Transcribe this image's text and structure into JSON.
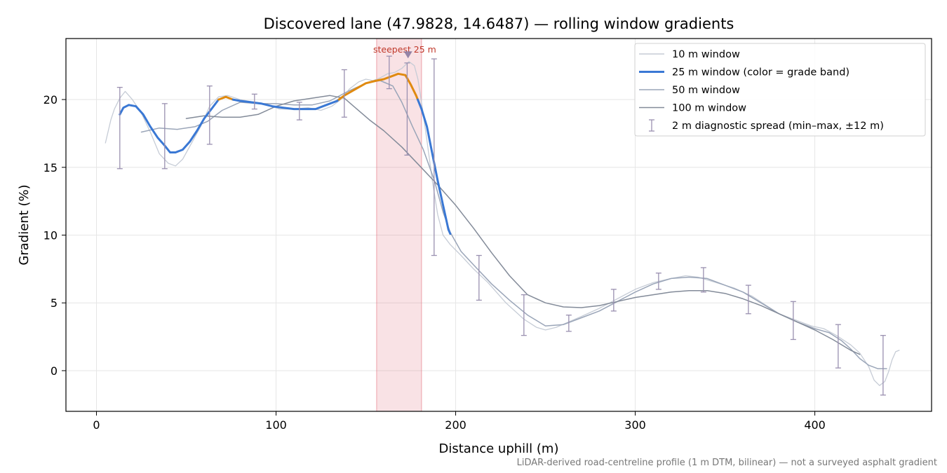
{
  "chart_data": {
    "type": "line",
    "title": "Discovered lane (47.9828, 14.6487) — rolling window gradients",
    "xlabel": "Distance uphill (m)",
    "ylabel": "Gradient (%)",
    "footnote": "LiDAR-derived road-centreline profile (1 m DTM, bilinear) — not a surveyed asphalt gradient",
    "xlim": [
      -17,
      465
    ],
    "ylim": [
      -3,
      24.5
    ],
    "xticks": [
      0,
      100,
      200,
      300,
      400
    ],
    "yticks": [
      0,
      5,
      10,
      15,
      20
    ],
    "grid": true,
    "legend_position": "top-right",
    "highlight": {
      "x_range": [
        156,
        181
      ],
      "label": "steepest 25 m",
      "marker_x": 173.5,
      "marker_y": 23.3,
      "color": "#e06070"
    },
    "series": [
      {
        "name": "10 m window",
        "color": "#c6ccd6",
        "points": [
          [
            5,
            16.8
          ],
          [
            8,
            18.5
          ],
          [
            10,
            19.3
          ],
          [
            13,
            20.1
          ],
          [
            16,
            20.6
          ],
          [
            20,
            20.0
          ],
          [
            25,
            19.0
          ],
          [
            30,
            17.6
          ],
          [
            35,
            16.0
          ],
          [
            40,
            15.3
          ],
          [
            44,
            15.1
          ],
          [
            48,
            15.6
          ],
          [
            53,
            16.8
          ],
          [
            58,
            18.0
          ],
          [
            63,
            19.5
          ],
          [
            68,
            20.2
          ],
          [
            73,
            20.3
          ],
          [
            80,
            20.0
          ],
          [
            88,
            19.8
          ],
          [
            95,
            19.6
          ],
          [
            102,
            19.3
          ],
          [
            110,
            19.3
          ],
          [
            118,
            19.4
          ],
          [
            125,
            19.2
          ],
          [
            131,
            19.5
          ],
          [
            136,
            20.0
          ],
          [
            141,
            20.8
          ],
          [
            146,
            21.3
          ],
          [
            150,
            21.5
          ],
          [
            154,
            21.4
          ],
          [
            158,
            21.6
          ],
          [
            162,
            21.9
          ],
          [
            166,
            22.0
          ],
          [
            170,
            22.3
          ],
          [
            174,
            22.8
          ],
          [
            177,
            22.5
          ],
          [
            179,
            21.5
          ],
          [
            181,
            19.8
          ],
          [
            184,
            17.0
          ],
          [
            187,
            14.0
          ],
          [
            190,
            11.5
          ],
          [
            193,
            10.0
          ],
          [
            197,
            9.3
          ],
          [
            203,
            8.5
          ],
          [
            210,
            7.5
          ],
          [
            218,
            6.5
          ],
          [
            228,
            5.0
          ],
          [
            238,
            3.8
          ],
          [
            245,
            3.2
          ],
          [
            250,
            3.0
          ],
          [
            256,
            3.2
          ],
          [
            263,
            3.6
          ],
          [
            270,
            4.0
          ],
          [
            280,
            4.6
          ],
          [
            290,
            5.3
          ],
          [
            300,
            6.0
          ],
          [
            310,
            6.5
          ],
          [
            320,
            6.8
          ],
          [
            328,
            7.0
          ],
          [
            335,
            6.9
          ],
          [
            345,
            6.5
          ],
          [
            355,
            6.1
          ],
          [
            365,
            5.5
          ],
          [
            373,
            4.8
          ],
          [
            380,
            4.2
          ],
          [
            390,
            3.7
          ],
          [
            398,
            3.3
          ],
          [
            405,
            3.1
          ],
          [
            412,
            2.6
          ],
          [
            420,
            1.9
          ],
          [
            425,
            1.3
          ],
          [
            430,
            0.3
          ],
          [
            433,
            -0.7
          ],
          [
            436,
            -1.1
          ],
          [
            439,
            -0.8
          ],
          [
            441,
            -0.1
          ],
          [
            443,
            0.8
          ],
          [
            445,
            1.4
          ],
          [
            447,
            1.5
          ]
        ]
      },
      {
        "name": "25 m window (color = grade band)",
        "color": "#3a78d4",
        "band_color": "#e08a10",
        "band_threshold": 20,
        "points": [
          [
            13,
            18.9
          ],
          [
            15,
            19.4
          ],
          [
            18,
            19.6
          ],
          [
            22,
            19.5
          ],
          [
            26,
            18.9
          ],
          [
            30,
            18.0
          ],
          [
            34,
            17.2
          ],
          [
            38,
            16.6
          ],
          [
            41,
            16.1
          ],
          [
            44,
            16.1
          ],
          [
            48,
            16.3
          ],
          [
            52,
            16.9
          ],
          [
            56,
            17.7
          ],
          [
            60,
            18.6
          ],
          [
            64,
            19.3
          ],
          [
            68,
            20.0
          ],
          [
            72,
            20.2
          ],
          [
            76,
            20.0
          ],
          [
            80,
            19.9
          ],
          [
            86,
            19.8
          ],
          [
            92,
            19.7
          ],
          [
            98,
            19.5
          ],
          [
            104,
            19.4
          ],
          [
            110,
            19.3
          ],
          [
            116,
            19.3
          ],
          [
            122,
            19.3
          ],
          [
            128,
            19.6
          ],
          [
            134,
            19.9
          ],
          [
            138,
            20.3
          ],
          [
            142,
            20.6
          ],
          [
            146,
            20.9
          ],
          [
            150,
            21.2
          ],
          [
            156,
            21.4
          ],
          [
            160,
            21.5
          ],
          [
            164,
            21.7
          ],
          [
            168,
            21.9
          ],
          [
            172,
            21.8
          ],
          [
            175,
            21.1
          ],
          [
            178,
            20.3
          ],
          [
            181,
            19.3
          ],
          [
            184,
            18.0
          ],
          [
            187,
            16.0
          ],
          [
            190,
            14.0
          ],
          [
            193,
            12.2
          ],
          [
            196,
            10.4
          ],
          [
            197,
            10.1
          ]
        ]
      },
      {
        "name": "50 m window",
        "color": "#9aa5b8",
        "points": [
          [
            25,
            17.6
          ],
          [
            35,
            17.9
          ],
          [
            45,
            17.8
          ],
          [
            55,
            18.0
          ],
          [
            62,
            18.4
          ],
          [
            70,
            19.2
          ],
          [
            80,
            19.8
          ],
          [
            90,
            19.7
          ],
          [
            100,
            19.7
          ],
          [
            110,
            19.6
          ],
          [
            120,
            19.6
          ],
          [
            130,
            19.9
          ],
          [
            140,
            20.6
          ],
          [
            150,
            21.2
          ],
          [
            158,
            21.4
          ],
          [
            165,
            21.0
          ],
          [
            170,
            19.8
          ],
          [
            176,
            18.0
          ],
          [
            182,
            16.3
          ],
          [
            188,
            14.1
          ],
          [
            193,
            11.7
          ],
          [
            197,
            10.2
          ],
          [
            203,
            8.8
          ],
          [
            210,
            7.8
          ],
          [
            220,
            6.4
          ],
          [
            230,
            5.2
          ],
          [
            240,
            4.1
          ],
          [
            250,
            3.3
          ],
          [
            260,
            3.4
          ],
          [
            270,
            3.9
          ],
          [
            280,
            4.4
          ],
          [
            290,
            5.1
          ],
          [
            300,
            5.8
          ],
          [
            310,
            6.4
          ],
          [
            320,
            6.8
          ],
          [
            330,
            6.9
          ],
          [
            340,
            6.8
          ],
          [
            350,
            6.3
          ],
          [
            360,
            5.8
          ],
          [
            370,
            5.0
          ],
          [
            380,
            4.2
          ],
          [
            390,
            3.6
          ],
          [
            400,
            3.1
          ],
          [
            408,
            2.8
          ],
          [
            415,
            2.2
          ],
          [
            420,
            1.6
          ],
          [
            425,
            0.9
          ],
          [
            430,
            0.4
          ],
          [
            435,
            0.15
          ],
          [
            440,
            0.15
          ]
        ]
      },
      {
        "name": "100 m window",
        "color": "#838b99",
        "points": [
          [
            50,
            18.6
          ],
          [
            60,
            18.8
          ],
          [
            70,
            18.7
          ],
          [
            80,
            18.7
          ],
          [
            90,
            18.9
          ],
          [
            100,
            19.5
          ],
          [
            110,
            19.9
          ],
          [
            120,
            20.1
          ],
          [
            130,
            20.3
          ],
          [
            138,
            20.1
          ],
          [
            145,
            19.3
          ],
          [
            152,
            18.5
          ],
          [
            160,
            17.7
          ],
          [
            170,
            16.5
          ],
          [
            180,
            15.1
          ],
          [
            190,
            13.7
          ],
          [
            200,
            12.2
          ],
          [
            210,
            10.5
          ],
          [
            220,
            8.7
          ],
          [
            230,
            7.0
          ],
          [
            240,
            5.6
          ],
          [
            250,
            5.0
          ],
          [
            260,
            4.7
          ],
          [
            270,
            4.65
          ],
          [
            280,
            4.8
          ],
          [
            290,
            5.1
          ],
          [
            300,
            5.4
          ],
          [
            310,
            5.6
          ],
          [
            320,
            5.8
          ],
          [
            330,
            5.9
          ],
          [
            340,
            5.9
          ],
          [
            350,
            5.7
          ],
          [
            360,
            5.3
          ],
          [
            370,
            4.8
          ],
          [
            380,
            4.2
          ],
          [
            390,
            3.6
          ],
          [
            400,
            3.0
          ],
          [
            410,
            2.3
          ],
          [
            420,
            1.5
          ],
          [
            425,
            1.2
          ]
        ]
      }
    ],
    "diagnostic_spread": {
      "name": "2 m diagnostic spread (min–max, ±12 m)",
      "color": "#9a90b0",
      "points": [
        {
          "x": 13,
          "min": 14.9,
          "max": 20.9
        },
        {
          "x": 38,
          "min": 14.9,
          "max": 19.7
        },
        {
          "x": 63,
          "min": 16.7,
          "max": 21.0
        },
        {
          "x": 88,
          "min": 19.3,
          "max": 20.4
        },
        {
          "x": 113,
          "min": 18.5,
          "max": 19.8
        },
        {
          "x": 138,
          "min": 18.7,
          "max": 22.2
        },
        {
          "x": 163,
          "min": 20.8,
          "max": 23.2
        },
        {
          "x": 173,
          "min": 15.9,
          "max": 22.7
        },
        {
          "x": 188,
          "min": 8.5,
          "max": 23.0
        },
        {
          "x": 213,
          "min": 5.2,
          "max": 8.5
        },
        {
          "x": 238,
          "min": 2.6,
          "max": 5.6
        },
        {
          "x": 263,
          "min": 2.9,
          "max": 4.1
        },
        {
          "x": 288,
          "min": 4.4,
          "max": 6.0
        },
        {
          "x": 313,
          "min": 6.0,
          "max": 7.2
        },
        {
          "x": 338,
          "min": 5.8,
          "max": 7.6
        },
        {
          "x": 363,
          "min": 4.2,
          "max": 6.3
        },
        {
          "x": 388,
          "min": 2.3,
          "max": 5.1
        },
        {
          "x": 413,
          "min": 0.2,
          "max": 3.4
        },
        {
          "x": 438,
          "min": -1.8,
          "max": 2.6
        }
      ]
    }
  }
}
